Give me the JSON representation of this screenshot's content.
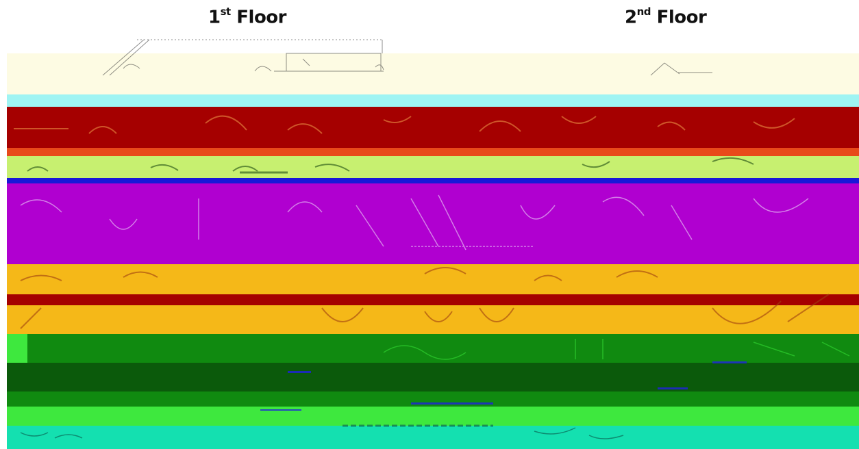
{
  "titles": {
    "first_floor": {
      "number": "1",
      "suffix": "st",
      "label": "Floor"
    },
    "second_floor": {
      "number": "2",
      "suffix": "nd",
      "label": "Floor"
    }
  },
  "colors": {
    "cream": "#fdfbe3",
    "cyan": "#9ff4f3",
    "dark_red": "#a50000",
    "orange_red": "#e84a1a",
    "lime": "#c7f070",
    "blue": "#1818d8",
    "magenta": "#b000d0",
    "amber": "#f5b818",
    "green": "#108a10",
    "dark_green": "#0b5a0b",
    "bright_green": "#3ee83e",
    "teal": "#14e0b0"
  }
}
